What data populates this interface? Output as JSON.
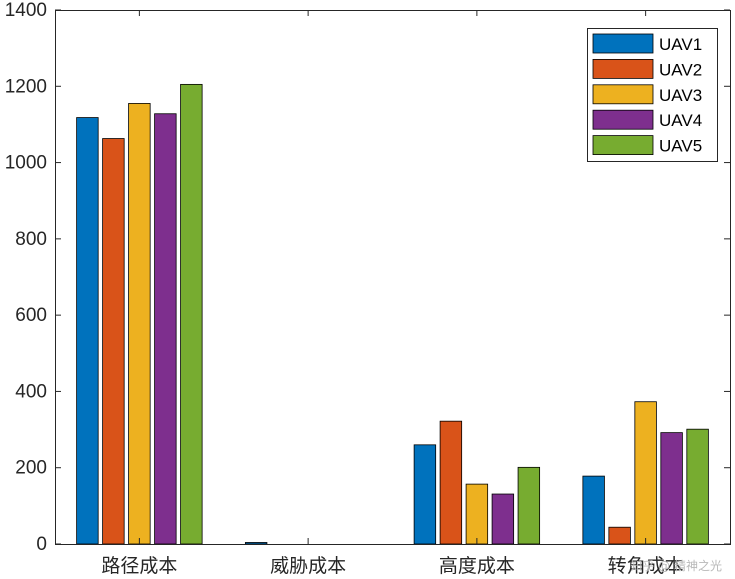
{
  "chart_data": {
    "type": "bar",
    "title": "",
    "xlabel": "",
    "ylabel": "",
    "categories": [
      "路径成本",
      "威胁成本",
      "高度成本",
      "转角成本"
    ],
    "ylim": [
      0,
      1400
    ],
    "yticks": [
      0,
      200,
      400,
      600,
      800,
      1000,
      1200,
      1400
    ],
    "grid": false,
    "legend_position": "top-right",
    "series": [
      {
        "name": "UAV1",
        "color": "#0072BD",
        "values": [
          1118,
          4,
          260,
          178
        ]
      },
      {
        "name": "UAV2",
        "color": "#D95319",
        "values": [
          1063,
          0,
          322,
          44
        ]
      },
      {
        "name": "UAV3",
        "color": "#EDB120",
        "values": [
          1155,
          0,
          157,
          373
        ]
      },
      {
        "name": "UAV4",
        "color": "#7E2F8E",
        "values": [
          1128,
          0,
          131,
          292
        ]
      },
      {
        "name": "UAV5",
        "color": "#77AC30",
        "values": [
          1205,
          0,
          201,
          301
        ]
      }
    ]
  },
  "watermark": "知乎 @ 精神之光"
}
